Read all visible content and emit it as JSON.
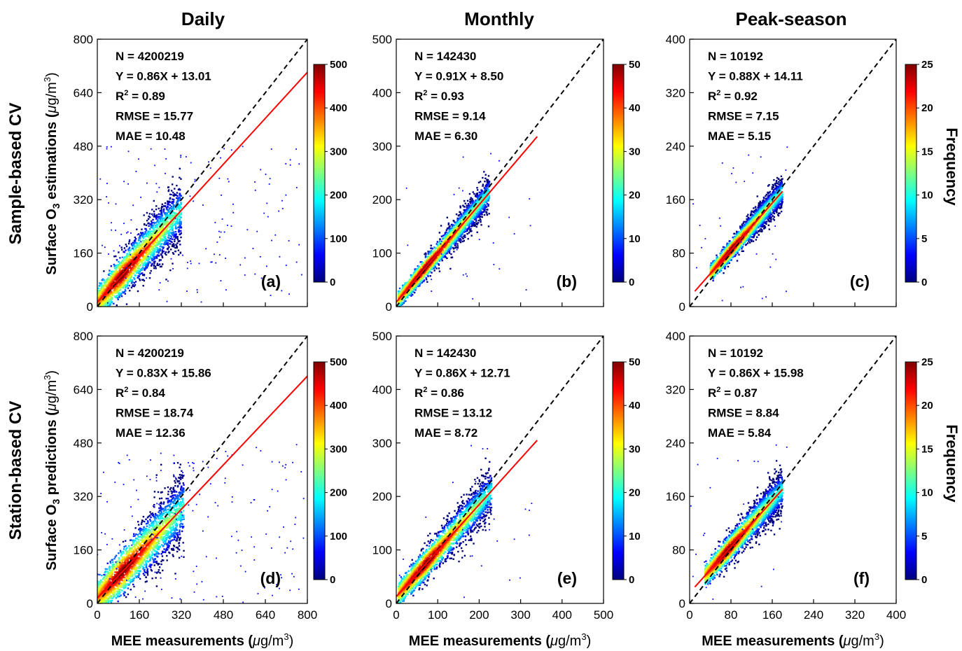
{
  "column_titles": [
    "Daily",
    "Monthly",
    "Peak-season"
  ],
  "row_titles": [
    "Sample-based CV",
    "Station-based CV"
  ],
  "ylabels": [
    "Surface O3 estimations (μg/m3)",
    "Surface O3 predictions (μg/m3)"
  ],
  "xlabel": "MEE measurements (μg/m3)",
  "colorbar_label": "Frequency",
  "colorbar_colors": [
    "#00007f",
    "#0000ff",
    "#007fff",
    "#00ffff",
    "#7fff7f",
    "#ffff00",
    "#ff7f00",
    "#ff0000",
    "#7f0000"
  ],
  "line_colors": {
    "identity": "#000000",
    "fit": "#ff0000"
  },
  "chart_data": [
    {
      "type": "scatter",
      "panel": "(a)",
      "row": 0,
      "col": 0,
      "xlim": [
        0,
        800
      ],
      "ylim": [
        0,
        800
      ],
      "xticks": [],
      "yticks": [
        0,
        160,
        320,
        480,
        640,
        800
      ],
      "stats": [
        "N = 4200219",
        "Y = 0.86X + 13.01",
        "R² = 0.89",
        "RMSE = 15.77",
        "MAE = 10.48"
      ],
      "fit": {
        "slope": 0.86,
        "intercept": 13.01,
        "x_end": 800
      },
      "identity_line": [
        [
          0,
          0
        ],
        [
          800,
          800
        ]
      ],
      "colorbar": {
        "range": [
          0,
          500
        ],
        "ticks": [
          0,
          100,
          200,
          300,
          400,
          500
        ]
      },
      "density": {
        "x_range": [
          0,
          320
        ],
        "spread": 35,
        "outlier_x_max": 800
      }
    },
    {
      "type": "scatter",
      "panel": "(b)",
      "row": 0,
      "col": 1,
      "xlim": [
        0,
        500
      ],
      "ylim": [
        0,
        500
      ],
      "xticks": [],
      "yticks": [
        0,
        100,
        200,
        300,
        400,
        500
      ],
      "stats": [
        "N = 142430",
        "Y = 0.91X + 8.50",
        "R² = 0.93",
        "RMSE = 9.14",
        "MAE = 6.30"
      ],
      "fit": {
        "slope": 0.91,
        "intercept": 8.5,
        "x_end": 340
      },
      "identity_line": [
        [
          0,
          0
        ],
        [
          500,
          500
        ]
      ],
      "colorbar": {
        "range": [
          0,
          50
        ],
        "ticks": [
          0,
          10,
          20,
          30,
          40,
          50
        ]
      },
      "density": {
        "x_range": [
          5,
          225
        ],
        "spread": 12,
        "outlier_x_max": 340
      }
    },
    {
      "type": "scatter",
      "panel": "(c)",
      "row": 0,
      "col": 2,
      "xlim": [
        0,
        400
      ],
      "ylim": [
        0,
        400
      ],
      "xticks": [],
      "yticks": [
        0,
        80,
        160,
        240,
        320,
        400
      ],
      "stats": [
        "N = 10192",
        "Y = 0.88X + 14.11",
        "R² = 0.92",
        "RMSE = 7.15",
        "MAE = 5.15"
      ],
      "fit": {
        "slope": 0.88,
        "intercept": 14.11,
        "x_start": 10,
        "x_end": 180
      },
      "identity_line": [
        [
          0,
          0
        ],
        [
          400,
          400
        ]
      ],
      "colorbar": {
        "range": [
          0,
          25
        ],
        "ticks": [
          0,
          5,
          10,
          15,
          20,
          25
        ]
      },
      "density": {
        "x_range": [
          40,
          180
        ],
        "spread": 9,
        "outlier_x_max": 190
      }
    },
    {
      "type": "scatter",
      "panel": "(d)",
      "row": 1,
      "col": 0,
      "xlim": [
        0,
        800
      ],
      "ylim": [
        0,
        800
      ],
      "xticks": [
        0,
        160,
        320,
        480,
        640,
        800
      ],
      "yticks": [
        0,
        160,
        320,
        480,
        640,
        800
      ],
      "stats": [
        "N = 4200219",
        "Y = 0.83X + 15.86",
        "R² = 0.84",
        "RMSE = 18.74",
        "MAE = 12.36"
      ],
      "fit": {
        "slope": 0.83,
        "intercept": 15.86,
        "x_end": 800
      },
      "identity_line": [
        [
          0,
          0
        ],
        [
          800,
          800
        ]
      ],
      "colorbar": {
        "range": [
          0,
          500
        ],
        "ticks": [
          0,
          100,
          200,
          300,
          400,
          500
        ]
      },
      "density": {
        "x_range": [
          0,
          330
        ],
        "spread": 42,
        "outlier_x_max": 800
      }
    },
    {
      "type": "scatter",
      "panel": "(e)",
      "row": 1,
      "col": 1,
      "xlim": [
        0,
        500
      ],
      "ylim": [
        0,
        500
      ],
      "xticks": [
        0,
        100,
        200,
        300,
        400,
        500
      ],
      "yticks": [
        0,
        100,
        200,
        300,
        400,
        500
      ],
      "stats": [
        "N = 142430",
        "Y = 0.86X + 12.71",
        "R² = 0.86",
        "RMSE = 13.12",
        "MAE = 8.72"
      ],
      "fit": {
        "slope": 0.86,
        "intercept": 12.71,
        "x_end": 340
      },
      "identity_line": [
        [
          0,
          0
        ],
        [
          500,
          500
        ]
      ],
      "colorbar": {
        "range": [
          0,
          50
        ],
        "ticks": [
          0,
          10,
          20,
          30,
          40,
          50
        ]
      },
      "density": {
        "x_range": [
          5,
          230
        ],
        "spread": 17,
        "outlier_x_max": 340
      }
    },
    {
      "type": "scatter",
      "panel": "(f)",
      "row": 1,
      "col": 2,
      "xlim": [
        0,
        400
      ],
      "ylim": [
        0,
        400
      ],
      "xticks": [
        0,
        80,
        160,
        240,
        320,
        400
      ],
      "yticks": [
        0,
        80,
        160,
        240,
        320,
        400
      ],
      "stats": [
        "N = 10192",
        "Y = 0.86X + 15.98",
        "R² = 0.87",
        "RMSE = 8.84",
        "MAE = 5.84"
      ],
      "fit": {
        "slope": 0.86,
        "intercept": 15.98,
        "x_start": 10,
        "x_end": 180
      },
      "identity_line": [
        [
          0,
          0
        ],
        [
          400,
          400
        ]
      ],
      "colorbar": {
        "range": [
          0,
          25
        ],
        "ticks": [
          0,
          5,
          10,
          15,
          20,
          25
        ]
      },
      "density": {
        "x_range": [
          30,
          180
        ],
        "spread": 12,
        "outlier_x_max": 190
      }
    }
  ]
}
